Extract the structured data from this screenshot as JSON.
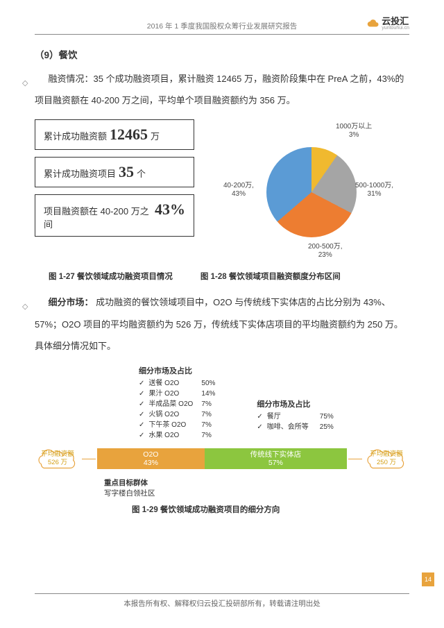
{
  "header": {
    "title": "2016 年 1 季度我国股权众筹行业发展研究报告",
    "logo_cn": "云投汇",
    "logo_en": "yuntouhui.cn"
  },
  "section": {
    "number_title": "（9）餐饮",
    "para1": "融资情况：35 个成功融资项目，累计融资 12465 万，融资阶段集中在 PreA 之前，43%的项目融资额在 40-200 万之间，平均单个项目融资额约为 356 万。",
    "para2_prefix": "细分市场：",
    "para2": " 成功融资的餐饮领域项目中，O2O 与传统线下实体店的占比分别为 43%、57%；O2O 项目的平均融资额约为 526 万，传统线下实体店项目的平均融资额约为 250 万。具体细分情况如下。"
  },
  "stats": {
    "box1_label": "累计成功融资额",
    "box1_value": "12465",
    "box1_unit": "万",
    "box2_label": "累计成功融资项目",
    "box2_value": "35",
    "box2_unit": "个",
    "box3_label": "项目融资额在 40-200 万之间",
    "box3_value": "43%"
  },
  "pie": {
    "slices": [
      {
        "label": "40-200万,",
        "pct": "43%",
        "color": "#f0b92f",
        "value": 43
      },
      {
        "label": "200-500万,",
        "pct": "23%",
        "color": "#a5a5a5",
        "value": 23
      },
      {
        "label": "500-1000万,",
        "pct": "31%",
        "color": "#ed7d31",
        "value": 31
      },
      {
        "label": "1000万以上",
        "pct": "3%",
        "color": "#5b9bd5",
        "value": 3
      }
    ],
    "background": "#ffffff",
    "start_angle_deg": -120
  },
  "captions": {
    "fig27": "图 1-27  餐饮领域成功融资项目情况",
    "fig28": "图 1-28  餐饮领域项目融资额度分布区间",
    "fig29": "图 1-29  餐饮领域成功融资项目的细分方向"
  },
  "market": {
    "col1_title": "细分市场及占比",
    "col1": [
      {
        "name": "送餐 O2O",
        "pct": "50%"
      },
      {
        "name": "果汁 O2O",
        "pct": "14%"
      },
      {
        "name": "半成品菜 O2O",
        "pct": "7%"
      },
      {
        "name": "火锅 O2O",
        "pct": "7%"
      },
      {
        "name": "下午茶 O2O",
        "pct": "7%"
      },
      {
        "name": "水果 O2O",
        "pct": "7%"
      }
    ],
    "col2_title": "细分市场及占比",
    "col2": [
      {
        "name": "餐厅",
        "pct": "75%"
      },
      {
        "name": "咖啡、会所等",
        "pct": "25%"
      }
    ]
  },
  "bar": {
    "left_cloud_label": "平均融资额",
    "left_cloud_value": "526 万",
    "right_cloud_label": "平均融资额",
    "right_cloud_value": "250 万",
    "seg1_label": "O2O",
    "seg1_pct": "43%",
    "seg1_color": "#e8a33d",
    "seg1_width": 43,
    "seg2_label": "传统线下实体店",
    "seg2_pct": "57%",
    "seg2_color": "#8cc63f",
    "seg2_width": 57
  },
  "focus": {
    "title": "重点目标群体",
    "body": "写字楼白领社区"
  },
  "page_number": "14",
  "footer": "本报告所有权、解释权归云投汇投研部所有，转载请注明出处"
}
